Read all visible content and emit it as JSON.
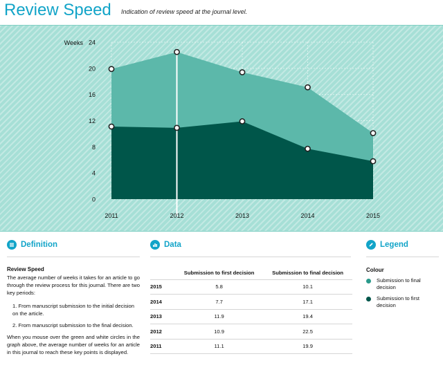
{
  "header": {
    "title": "Review Speed",
    "subtitle": "Indication of review speed at the journal level."
  },
  "chart_data": {
    "type": "area",
    "ylabel": "Weeks",
    "ylim": [
      0,
      24
    ],
    "yticks": [
      0,
      4,
      8,
      12,
      16,
      20,
      24
    ],
    "x": [
      "2011",
      "2012",
      "2013",
      "2014",
      "2015"
    ],
    "grid": true,
    "highlight_x": "2012",
    "series": [
      {
        "name": "Submission to final decision",
        "values": [
          19.9,
          22.5,
          19.4,
          17.1,
          10.1
        ],
        "color": "#5cb8aa"
      },
      {
        "name": "Submission to first decision",
        "values": [
          11.1,
          10.9,
          11.9,
          7.7,
          5.8
        ],
        "color": "#00564a"
      }
    ]
  },
  "definition": {
    "title": "Definition",
    "heading": "Review Speed",
    "text": "The average number of weeks it takes for an article to go through the review process for this journal. There are two key periods:",
    "items": [
      "1. From manuscript submission to the initial decision on the article.",
      "2. From manuscript submission to the final decision."
    ],
    "footer": "When you mouse over the green and white circles in the graph above, the average number of weeks for an article in this journal to reach these key points is displayed."
  },
  "data_panel": {
    "title": "Data",
    "columns": [
      "",
      "Submission to first decision",
      "Submission to final decision"
    ],
    "rows": [
      [
        "2015",
        "5.8",
        "10.1"
      ],
      [
        "2014",
        "7.7",
        "17.1"
      ],
      [
        "2013",
        "11.9",
        "19.4"
      ],
      [
        "2012",
        "10.9",
        "22.5"
      ],
      [
        "2011",
        "11.1",
        "19.9"
      ]
    ]
  },
  "legend": {
    "title": "Legend",
    "colour_label": "Colour",
    "items": [
      {
        "label": "Submission to final decision",
        "color": "#2a9a8b"
      },
      {
        "label": "Submission to first decision",
        "color": "#00564a"
      }
    ]
  }
}
